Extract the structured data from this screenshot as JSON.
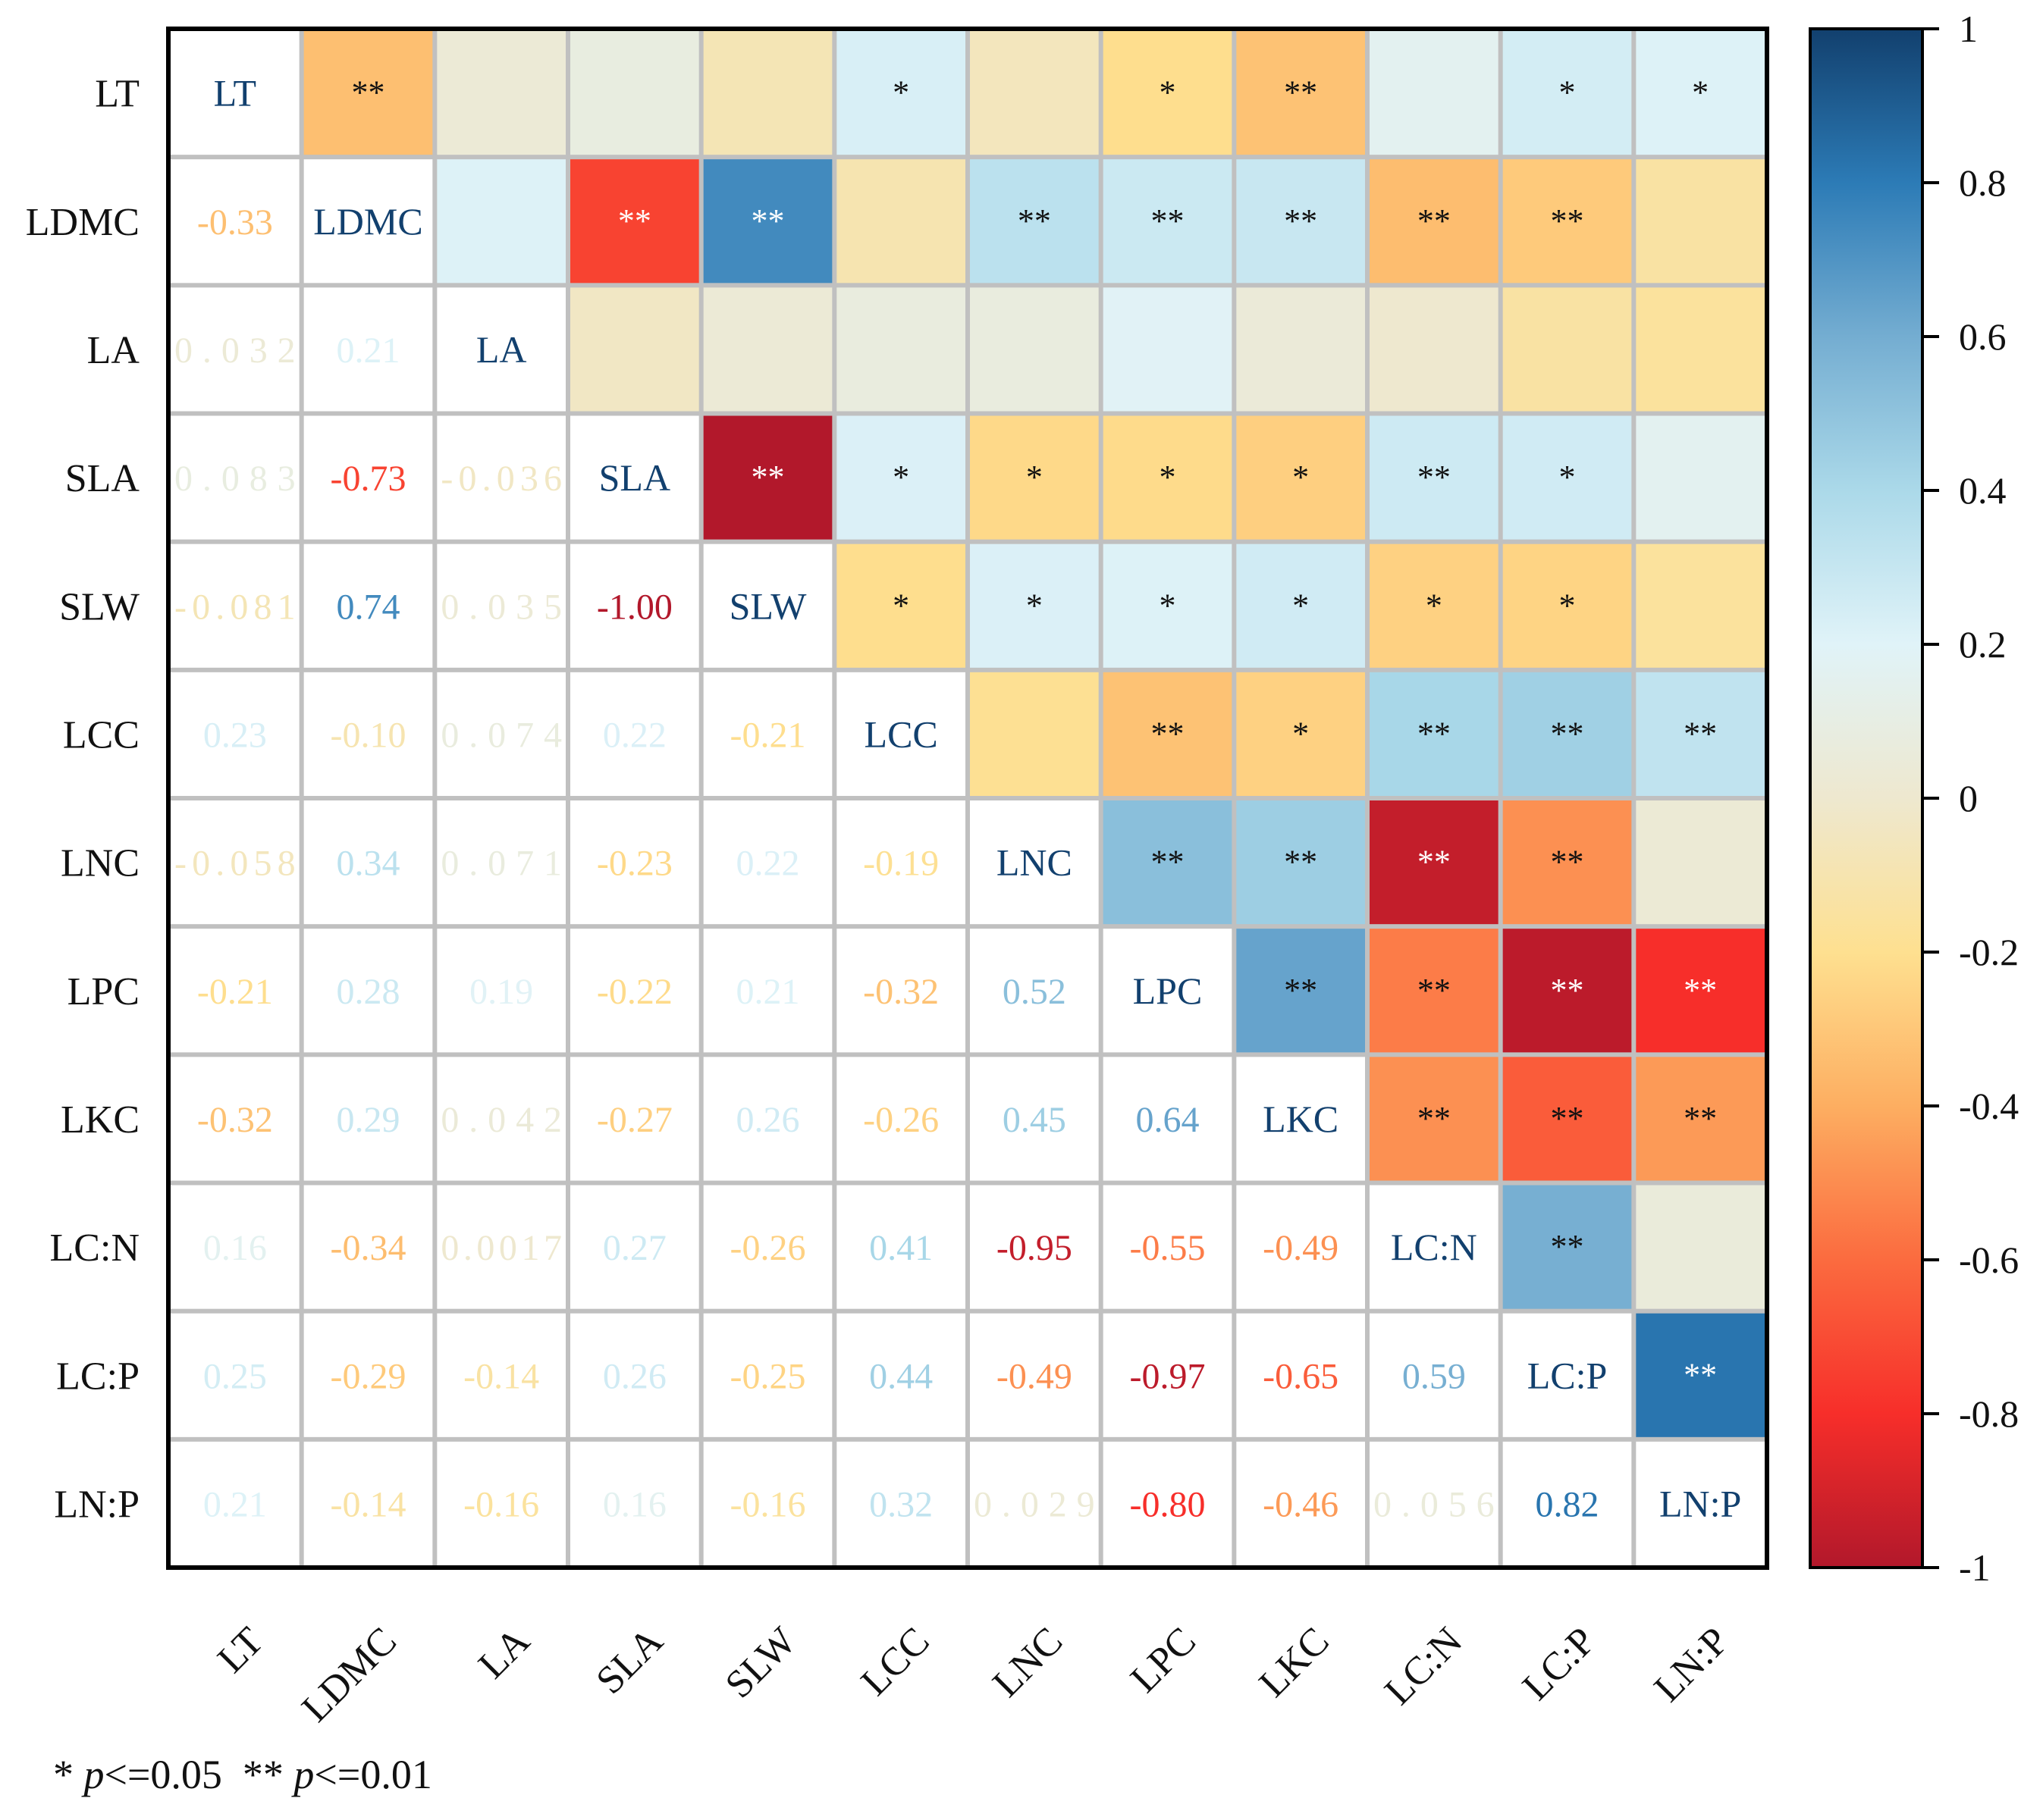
{
  "chart_data": {
    "type": "heatmap",
    "variables": [
      "LT",
      "LDMC",
      "LA",
      "SLA",
      "SLW",
      "LCC",
      "LNC",
      "LPC",
      "LKC",
      "LC:N",
      "LC:P",
      "LN:P"
    ],
    "lower_triangle_labels": [
      [
        "LT",
        "",
        "",
        "",
        "",
        "",
        "",
        "",
        "",
        "",
        "",
        ""
      ],
      [
        "-0.33",
        "LDMC",
        "",
        "",
        "",
        "",
        "",
        "",
        "",
        "",
        "",
        ""
      ],
      [
        "0.032",
        "0.21",
        "LA",
        "",
        "",
        "",
        "",
        "",
        "",
        "",
        "",
        ""
      ],
      [
        "0.083",
        "-0.73",
        "-0.036",
        "SLA",
        "",
        "",
        "",
        "",
        "",
        "",
        "",
        ""
      ],
      [
        "-0.081",
        "0.74",
        "0.035",
        "-1.00",
        "SLW",
        "",
        "",
        "",
        "",
        "",
        "",
        ""
      ],
      [
        "0.23",
        "-0.10",
        "0.074",
        "0.22",
        "-0.21",
        "LCC",
        "",
        "",
        "",
        "",
        "",
        ""
      ],
      [
        "-0.058",
        "0.34",
        "0.071",
        "-0.23",
        "0.22",
        "-0.19",
        "LNC",
        "",
        "",
        "",
        "",
        ""
      ],
      [
        "-0.21",
        "0.28",
        "0.19",
        "-0.22",
        "0.21",
        "-0.32",
        "0.52",
        "LPC",
        "",
        "",
        "",
        ""
      ],
      [
        "-0.32",
        "0.29",
        "0.042",
        "-0.27",
        "0.26",
        "-0.26",
        "0.45",
        "0.64",
        "LKC",
        "",
        "",
        ""
      ],
      [
        "0.16",
        "-0.34",
        "0.0017",
        "0.27",
        "-0.26",
        "0.41",
        "-0.95",
        "-0.55",
        "-0.49",
        "LC:N",
        "",
        ""
      ],
      [
        "0.25",
        "-0.29",
        "-0.14",
        "0.26",
        "-0.25",
        "0.44",
        "-0.49",
        "-0.97",
        "-0.65",
        "0.59",
        "LC:P",
        ""
      ],
      [
        "0.21",
        "-0.14",
        "-0.16",
        "0.16",
        "-0.16",
        "0.32",
        "0.029",
        "-0.80",
        "-0.46",
        "0.056",
        "0.82",
        "LN:P"
      ]
    ],
    "significance": [
      [
        "",
        "**",
        "",
        "",
        "",
        "*",
        "",
        "*",
        "**",
        "",
        "*",
        "*"
      ],
      [
        "",
        "",
        "",
        "**",
        "**",
        "",
        "**",
        "**",
        "**",
        "**",
        "**",
        ""
      ],
      [
        "",
        "",
        "",
        "",
        "",
        "",
        "",
        "",
        "",
        "",
        "",
        ""
      ],
      [
        "",
        "",
        "",
        "",
        "**",
        "*",
        "*",
        "*",
        "*",
        "**",
        "*",
        ""
      ],
      [
        "",
        "",
        "",
        "",
        "",
        "*",
        "*",
        "*",
        "*",
        "*",
        "*",
        ""
      ],
      [
        "",
        "",
        "",
        "",
        "",
        "",
        "",
        "**",
        "*",
        "**",
        "**",
        "**"
      ],
      [
        "",
        "",
        "",
        "",
        "",
        "",
        "",
        "**",
        "**",
        "**",
        "**",
        ""
      ],
      [
        "",
        "",
        "",
        "",
        "",
        "",
        "",
        "",
        "**",
        "**",
        "**",
        "**"
      ],
      [
        "",
        "",
        "",
        "",
        "",
        "",
        "",
        "",
        "",
        "**",
        "**",
        "**"
      ],
      [
        "",
        "",
        "",
        "",
        "",
        "",
        "",
        "",
        "",
        "",
        "**",
        ""
      ],
      [
        "",
        "",
        "",
        "",
        "",
        "",
        "",
        "",
        "",
        "",
        "",
        "**"
      ],
      [
        "",
        "",
        "",
        "",
        "",
        "",
        "",
        "",
        "",
        "",
        "",
        ""
      ]
    ],
    "colorbar": {
      "range": [
        -1,
        1
      ],
      "ticks": [
        "1",
        "0.8",
        "0.6",
        "0.4",
        "0.2",
        "0",
        "-0.2",
        "-0.4",
        "-0.6",
        "-0.8",
        "-1"
      ],
      "colors": [
        "#b2182b",
        "#f72e2a",
        "#fb6b3f",
        "#fdae61",
        "#fee090",
        "#eee8cf",
        "#e0f3f8",
        "#abd9e9",
        "#74add1",
        "#2c7bb6",
        "#12406e"
      ]
    },
    "footnote": {
      "part1_star": "*",
      "part1_p": "p",
      "part1_rest": "<=0.05",
      "part2_star": "**",
      "part2_p": "p",
      "part2_rest": "<=0.01"
    }
  }
}
